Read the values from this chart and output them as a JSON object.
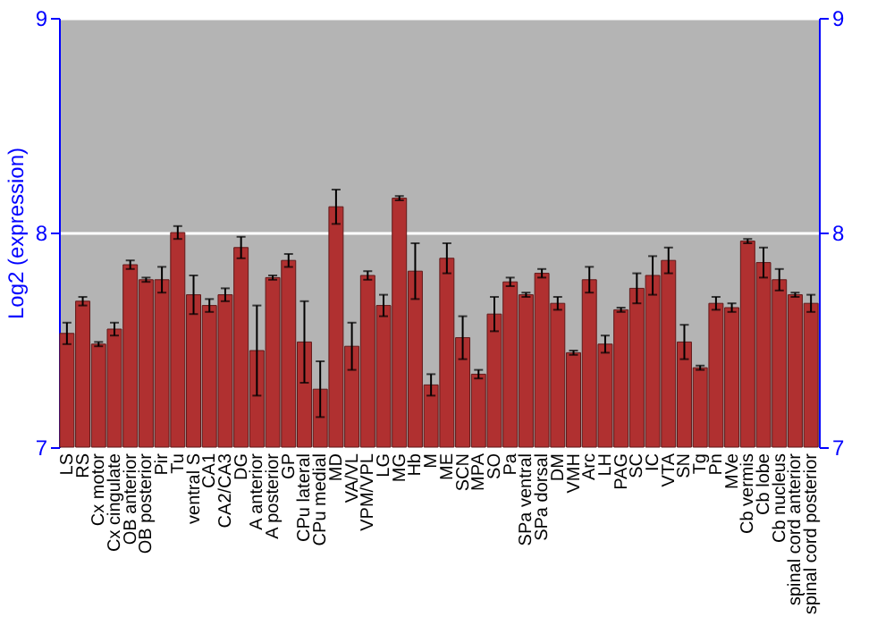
{
  "chart_data": {
    "type": "bar",
    "ylabel": "Log2 (expression)",
    "categories": [
      "LS",
      "RS",
      "Cx motor",
      "Cx cingulate",
      "OB anterior",
      "OB posterior",
      "Pir",
      "Tu",
      "ventral S",
      "CA1",
      "CA2/CA3",
      "DG",
      "A anterior",
      "A posterior",
      "GP",
      "CPu lateral",
      "CPu medial",
      "MD",
      "VA/VL",
      "VPM/VPL",
      "LG",
      "MG",
      "Hb",
      "M",
      "ME",
      "SCN",
      "MPA",
      "SO",
      "Pa",
      "SPa ventral",
      "SPa dorsal",
      "DM",
      "VMH",
      "Arc",
      "LH",
      "PAG",
      "SC",
      "IC",
      "VTA",
      "SN",
      "Tg",
      "Pn",
      "MVe",
      "Cb vermis",
      "Cb lobe",
      "Cb nucleus",
      "spinal cord anterior",
      "spinal cord posterior"
    ],
    "values": [
      7.53,
      7.68,
      7.48,
      7.55,
      7.85,
      7.78,
      7.78,
      8.0,
      7.71,
      7.66,
      7.71,
      7.93,
      7.45,
      7.79,
      7.87,
      7.49,
      7.27,
      8.12,
      7.47,
      7.8,
      7.66,
      8.16,
      7.82,
      7.29,
      7.88,
      7.51,
      7.34,
      7.62,
      7.77,
      7.71,
      7.81,
      7.67,
      7.44,
      7.78,
      7.48,
      7.64,
      7.74,
      7.8,
      7.87,
      7.49,
      7.37,
      7.67,
      7.65,
      7.96,
      7.86,
      7.78,
      7.71,
      7.67
    ],
    "errors": [
      0.05,
      0.02,
      0.01,
      0.03,
      0.02,
      0.01,
      0.06,
      0.03,
      0.09,
      0.03,
      0.03,
      0.05,
      0.21,
      0.01,
      0.03,
      0.19,
      0.13,
      0.08,
      0.11,
      0.02,
      0.05,
      0.01,
      0.13,
      0.05,
      0.07,
      0.1,
      0.02,
      0.08,
      0.02,
      0.01,
      0.02,
      0.03,
      0.01,
      0.06,
      0.04,
      0.01,
      0.07,
      0.09,
      0.06,
      0.08,
      0.01,
      0.03,
      0.02,
      0.01,
      0.07,
      0.05,
      0.01,
      0.04
    ],
    "color": "#b03030",
    "ylim": [
      7,
      9
    ],
    "yticks": [
      7,
      8,
      9
    ],
    "y2lim": [
      7,
      9
    ],
    "y2ticks": [
      7,
      8,
      9
    ],
    "grid": "y"
  }
}
